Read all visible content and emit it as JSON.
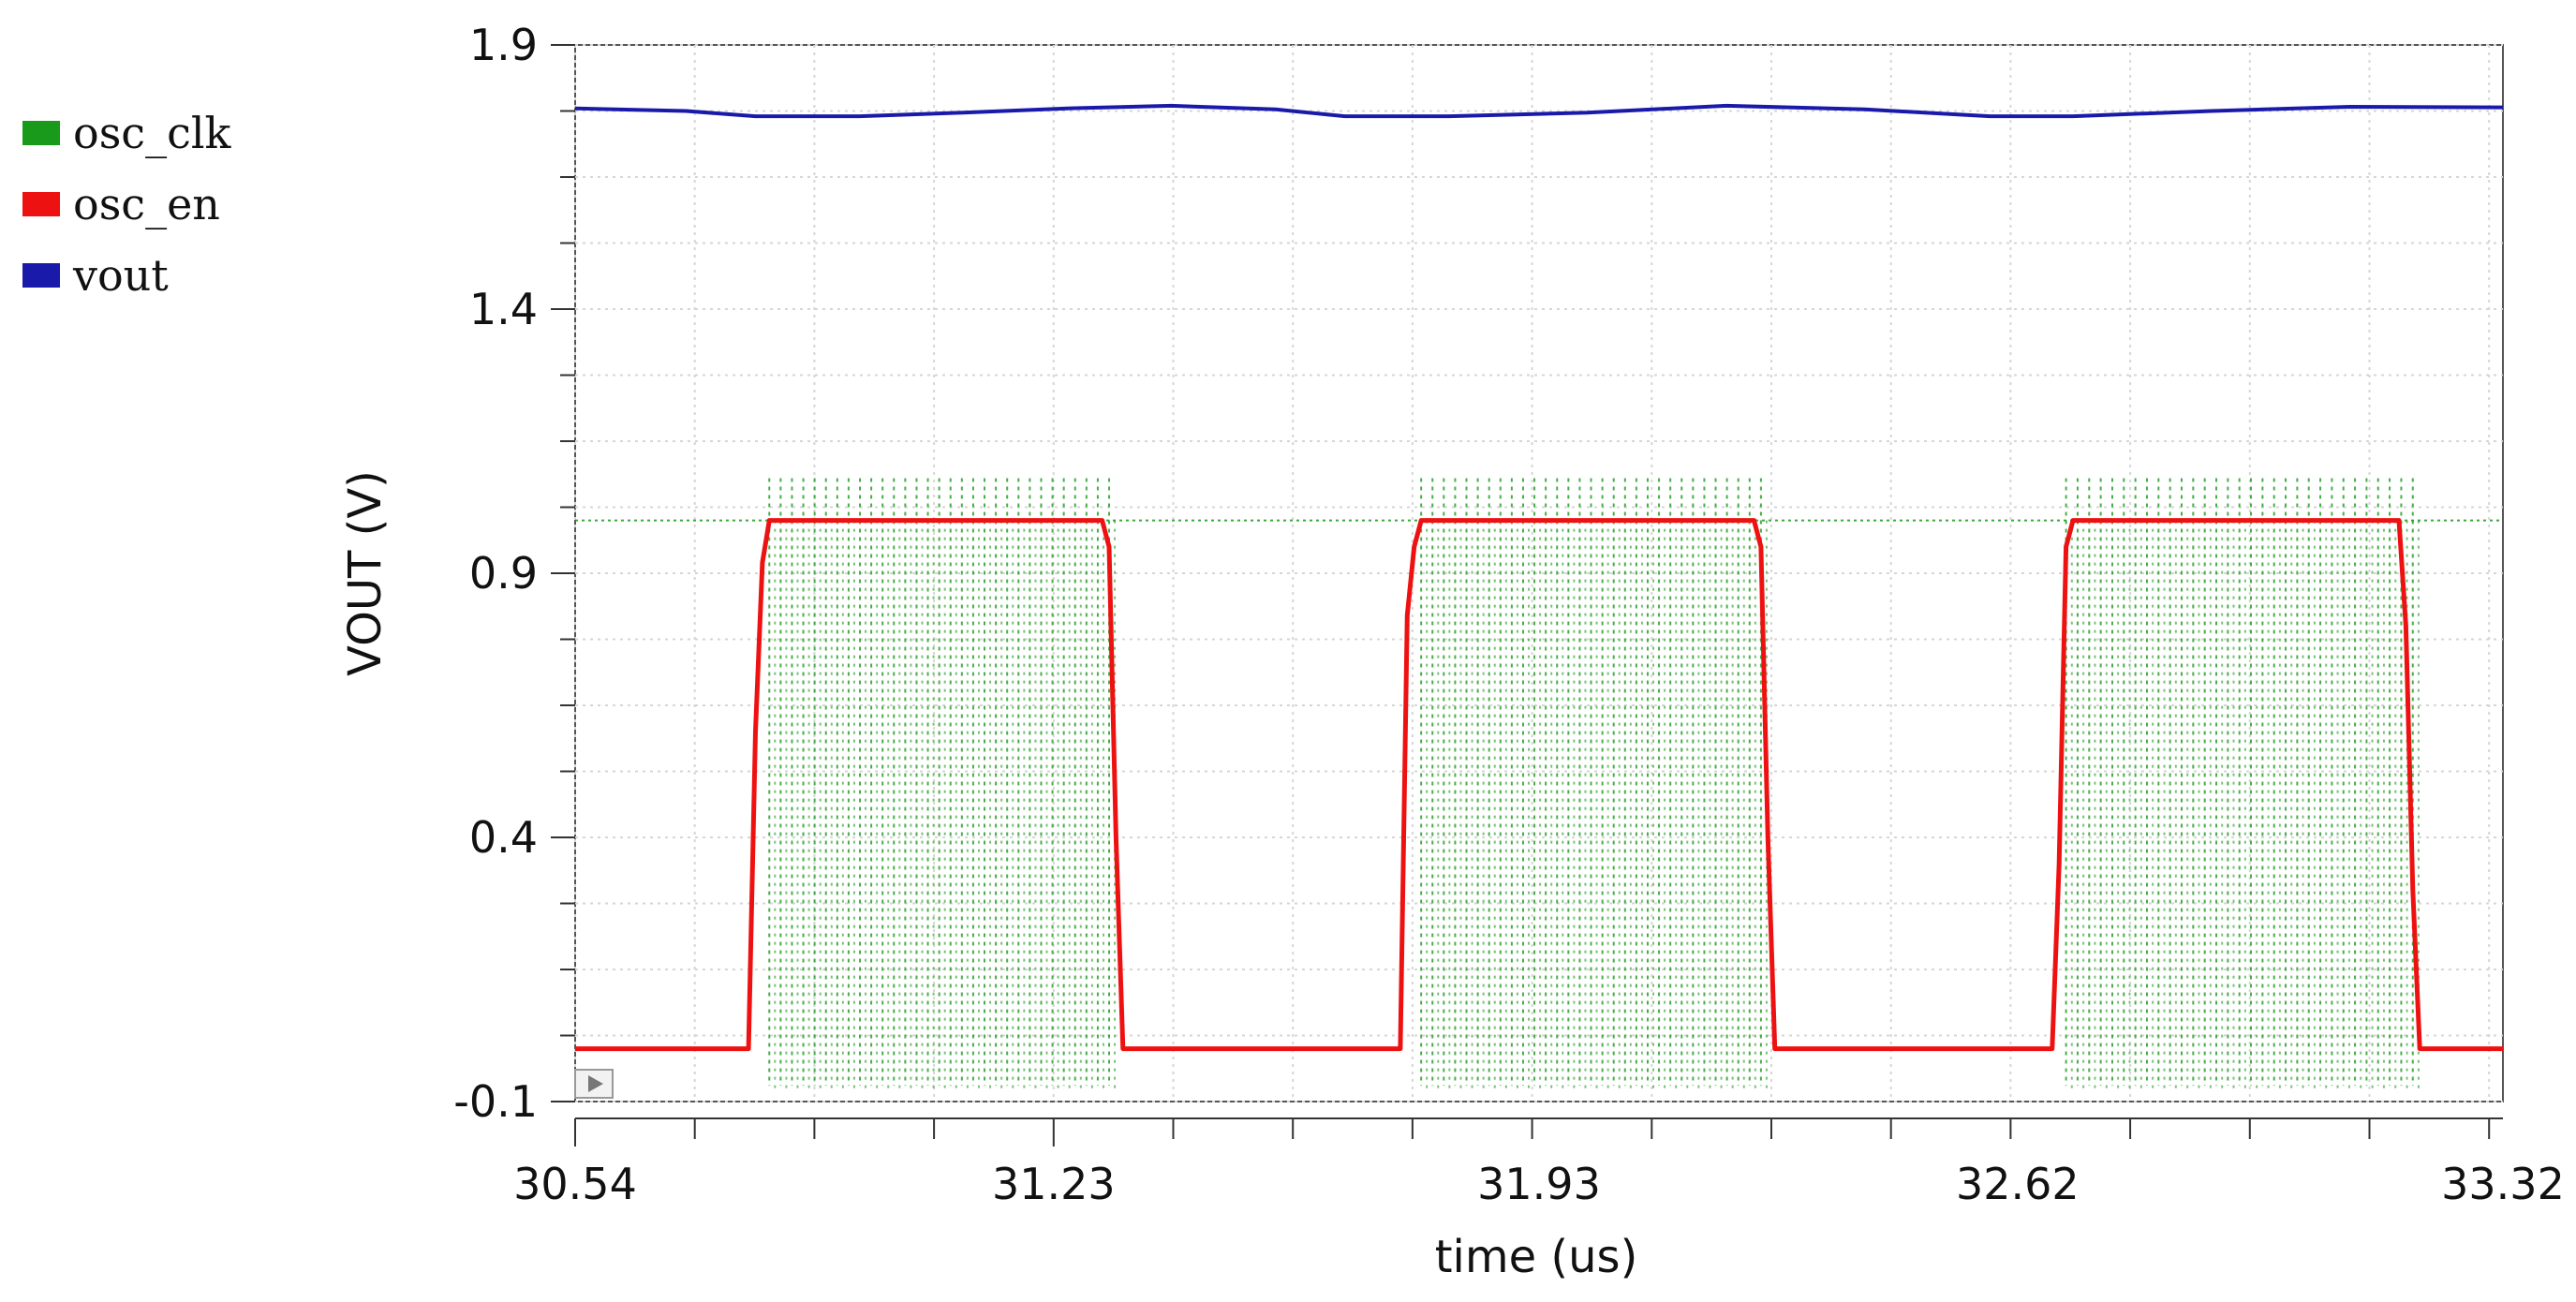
{
  "chart_data": {
    "type": "line",
    "title": "",
    "xlabel": "time (us)",
    "ylabel": "VOUT (V)",
    "xlim": [
      30.54,
      33.32
    ],
    "ylim": [
      -0.1,
      1.9
    ],
    "x_ticks": [
      "30.54",
      "31.23",
      "31.93",
      "32.62",
      "33.32"
    ],
    "y_ticks": [
      "-0.1",
      "0.4",
      "0.9",
      "1.4",
      "1.9"
    ],
    "grid": true,
    "legend_position": "left",
    "legend": [
      {
        "name": "osc_clk",
        "color": "#1a9a1a"
      },
      {
        "name": "osc_en",
        "color": "#ee1111"
      },
      {
        "name": "vout",
        "color": "#1a1aaa"
      }
    ],
    "series": [
      {
        "name": "vout",
        "color": "#1a1aaa",
        "x": [
          30.54,
          30.7,
          30.8,
          30.95,
          31.1,
          31.25,
          31.4,
          31.55,
          31.65,
          31.8,
          32.0,
          32.2,
          32.4,
          32.58,
          32.7,
          32.9,
          33.1,
          33.32
        ],
        "values": [
          1.78,
          1.775,
          1.765,
          1.765,
          1.772,
          1.78,
          1.785,
          1.778,
          1.765,
          1.765,
          1.772,
          1.785,
          1.778,
          1.765,
          1.765,
          1.775,
          1.783,
          1.782
        ]
      },
      {
        "name": "osc_en",
        "color": "#ee1111",
        "x": [
          30.54,
          30.79,
          30.8,
          30.81,
          30.82,
          31.3,
          31.31,
          31.32,
          31.33,
          31.73,
          31.74,
          31.75,
          31.76,
          32.24,
          32.25,
          32.26,
          32.27,
          32.67,
          32.68,
          32.69,
          32.7,
          33.17,
          33.18,
          33.19,
          33.2,
          33.32
        ],
        "values": [
          0.0,
          0.0,
          0.6,
          0.92,
          1.0,
          1.0,
          0.95,
          0.4,
          0.0,
          0.0,
          0.82,
          0.95,
          1.0,
          1.0,
          0.95,
          0.4,
          0.0,
          0.0,
          0.35,
          0.95,
          1.0,
          1.0,
          0.8,
          0.3,
          0.0,
          0.0
        ]
      },
      {
        "name": "osc_clk",
        "color": "#1a9a1a",
        "style": "dotted",
        "bursts": [
          [
            30.82,
            31.31
          ],
          [
            31.76,
            32.25
          ],
          [
            32.69,
            33.19
          ]
        ],
        "low": -0.08,
        "high": 1.0,
        "overshoot_high": 1.08,
        "undershoot_low": -0.07,
        "cycles_per_burst": 30
      }
    ]
  }
}
